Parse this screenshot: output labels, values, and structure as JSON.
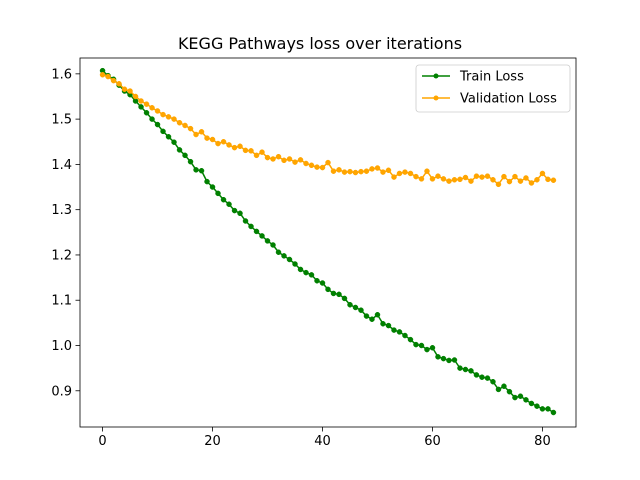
{
  "chart_data": {
    "type": "line",
    "title": "KEGG Pathways loss over iterations",
    "xlabel": "",
    "ylabel": "",
    "xlim": [
      -4.1,
      86.1
    ],
    "ylim": [
      0.82,
      1.635
    ],
    "xticks": [
      0,
      20,
      40,
      60,
      80
    ],
    "yticks": [
      0.9,
      1.0,
      1.1,
      1.2,
      1.3,
      1.4,
      1.5,
      1.6
    ],
    "ytick_labels": [
      "0.9",
      "1.0",
      "1.1",
      "1.2",
      "1.3",
      "1.4",
      "1.5",
      "1.6"
    ],
    "grid": false,
    "legend_position": "top-right",
    "series": [
      {
        "name": "Train Loss",
        "color": "#008000",
        "marker": "circle",
        "x": [
          0,
          1,
          2,
          3,
          4,
          5,
          6,
          7,
          8,
          9,
          10,
          11,
          12,
          13,
          14,
          15,
          16,
          17,
          18,
          19,
          20,
          21,
          22,
          23,
          24,
          25,
          26,
          27,
          28,
          29,
          30,
          31,
          32,
          33,
          34,
          35,
          36,
          37,
          38,
          39,
          40,
          41,
          42,
          43,
          44,
          45,
          46,
          47,
          48,
          49,
          50,
          51,
          52,
          53,
          54,
          55,
          56,
          57,
          58,
          59,
          60,
          61,
          62,
          63,
          64,
          65,
          66,
          67,
          68,
          69,
          70,
          71,
          72,
          73,
          74,
          75,
          76,
          77,
          78,
          79,
          80,
          81,
          82
        ],
        "values": [
          1.607,
          1.596,
          1.588,
          1.575,
          1.562,
          1.554,
          1.54,
          1.527,
          1.514,
          1.5,
          1.488,
          1.473,
          1.461,
          1.449,
          1.432,
          1.42,
          1.406,
          1.388,
          1.386,
          1.362,
          1.35,
          1.336,
          1.322,
          1.312,
          1.298,
          1.292,
          1.275,
          1.263,
          1.252,
          1.242,
          1.231,
          1.222,
          1.206,
          1.198,
          1.19,
          1.18,
          1.168,
          1.161,
          1.156,
          1.143,
          1.138,
          1.124,
          1.115,
          1.113,
          1.104,
          1.09,
          1.084,
          1.078,
          1.065,
          1.058,
          1.068,
          1.048,
          1.044,
          1.034,
          1.03,
          1.022,
          1.013,
          1.002,
          1.0,
          0.991,
          0.995,
          0.975,
          0.971,
          0.967,
          0.968,
          0.95,
          0.947,
          0.944,
          0.935,
          0.93,
          0.928,
          0.92,
          0.903,
          0.91,
          0.898,
          0.885,
          0.888,
          0.88,
          0.872,
          0.866,
          0.86,
          0.86,
          0.852
        ]
      },
      {
        "name": "Validation Loss",
        "color": "#ffa500",
        "marker": "circle",
        "x": [
          0,
          1,
          2,
          3,
          4,
          5,
          6,
          7,
          8,
          9,
          10,
          11,
          12,
          13,
          14,
          15,
          16,
          17,
          18,
          19,
          20,
          21,
          22,
          23,
          24,
          25,
          26,
          27,
          28,
          29,
          30,
          31,
          32,
          33,
          34,
          35,
          36,
          37,
          38,
          39,
          40,
          41,
          42,
          43,
          44,
          45,
          46,
          47,
          48,
          49,
          50,
          51,
          52,
          53,
          54,
          55,
          56,
          57,
          58,
          59,
          60,
          61,
          62,
          63,
          64,
          65,
          66,
          67,
          68,
          69,
          70,
          71,
          72,
          73,
          74,
          75,
          76,
          77,
          78,
          79,
          80,
          81,
          82
        ],
        "values": [
          1.598,
          1.594,
          1.585,
          1.578,
          1.566,
          1.562,
          1.55,
          1.54,
          1.533,
          1.525,
          1.518,
          1.51,
          1.505,
          1.5,
          1.492,
          1.486,
          1.479,
          1.466,
          1.472,
          1.458,
          1.455,
          1.446,
          1.45,
          1.443,
          1.437,
          1.44,
          1.431,
          1.43,
          1.42,
          1.427,
          1.415,
          1.412,
          1.417,
          1.409,
          1.412,
          1.405,
          1.41,
          1.402,
          1.398,
          1.394,
          1.393,
          1.404,
          1.385,
          1.388,
          1.383,
          1.384,
          1.382,
          1.384,
          1.385,
          1.39,
          1.392,
          1.383,
          1.387,
          1.372,
          1.38,
          1.383,
          1.38,
          1.373,
          1.368,
          1.385,
          1.368,
          1.374,
          1.368,
          1.363,
          1.366,
          1.367,
          1.371,
          1.363,
          1.374,
          1.372,
          1.374,
          1.366,
          1.356,
          1.373,
          1.362,
          1.373,
          1.363,
          1.37,
          1.359,
          1.366,
          1.38,
          1.367,
          1.365
        ]
      }
    ]
  }
}
